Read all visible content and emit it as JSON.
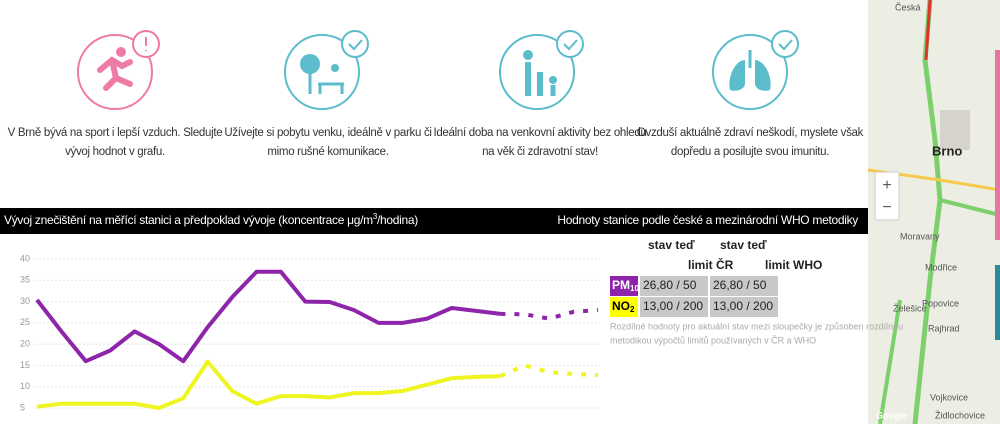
{
  "cards": [
    {
      "lines": [
        "V Brně bývá na sport i lepší vzduch. Sledujte",
        "vývoj hodnot v grafu."
      ]
    },
    {
      "lines": [
        "Užívejte si pobytu venku, ideálně v parku či",
        "mimo rušné komunikace."
      ]
    },
    {
      "lines": [
        "Ideální doba na venkovní aktivity bez ohledu",
        "na věk či zdravotní stav!"
      ]
    },
    {
      "lines": [
        "Ovzduší aktuálně zdraví neškodí, myslete však",
        "dopředu a posilujte svou imunitu."
      ]
    }
  ],
  "chart_data": {
    "type": "line",
    "title_parts": [
      "Vývoj znečištění na měřící stanici a předpoklad vývoje (koncentrace μg/m",
      "3",
      "/hodina)"
    ],
    "ylim": [
      5,
      40
    ],
    "yticks": [
      5,
      10,
      15,
      20,
      25,
      30,
      35,
      40
    ],
    "grid": true,
    "series": [
      {
        "color": "#8e24aa",
        "dashed": false,
        "values": [
          30.4,
          23,
          16,
          18.5,
          23,
          20,
          16,
          24,
          31,
          37,
          37,
          30,
          29.9,
          28,
          25,
          25,
          26,
          28.5,
          27.8,
          27.1,
          null,
          null,
          null,
          null
        ]
      },
      {
        "color": "#8e24aa",
        "dashed": true,
        "values": [
          null,
          null,
          null,
          null,
          null,
          null,
          null,
          null,
          null,
          null,
          null,
          null,
          null,
          null,
          null,
          null,
          null,
          null,
          null,
          27.1,
          27,
          26,
          27.6,
          28
        ]
      },
      {
        "color": "#eef520",
        "dashed": false,
        "values": [
          5.3,
          6,
          6,
          6,
          6,
          5,
          7.3,
          15.9,
          9,
          6,
          7.8,
          7.8,
          7.5,
          8.5,
          8.5,
          9,
          10.5,
          12,
          12.3,
          12.5,
          null,
          null,
          null,
          null
        ]
      },
      {
        "color": "#eef520",
        "dashed": true,
        "values": [
          null,
          null,
          null,
          null,
          null,
          null,
          null,
          null,
          null,
          null,
          null,
          null,
          null,
          null,
          null,
          null,
          null,
          null,
          null,
          12.5,
          15,
          13.4,
          13,
          12.7
        ]
      }
    ]
  },
  "table": {
    "title": "Hodnoty stanice podle české a mezinárodní WHO metodiky",
    "header": [
      [
        "stav teď",
        "limit ČR"
      ],
      [
        "stav teď",
        "limit WHO"
      ]
    ],
    "rows": [
      {
        "label": "PM",
        "sub": "10",
        "cells": [
          "26,80 / 50",
          "26,80 / 50"
        ]
      },
      {
        "label": "NO",
        "sub": "2",
        "cells": [
          "13,00 / 200",
          "13,00 / 200"
        ]
      }
    ],
    "note": [
      "Rozdílné hodnoty pro aktuální stav mezi sloupečky je způsoben rozdílnou",
      "metodikou výpočtů limitů používaných v ČR a WHO"
    ]
  },
  "map": {
    "labels": [
      "Česká",
      "Brno",
      "Moravany",
      "Modřice",
      "Želešice",
      "Popovice",
      "Rajhrad",
      "Vojkovice",
      "Židlochovice",
      "Google"
    ],
    "zoom": [
      "+",
      "−"
    ]
  }
}
